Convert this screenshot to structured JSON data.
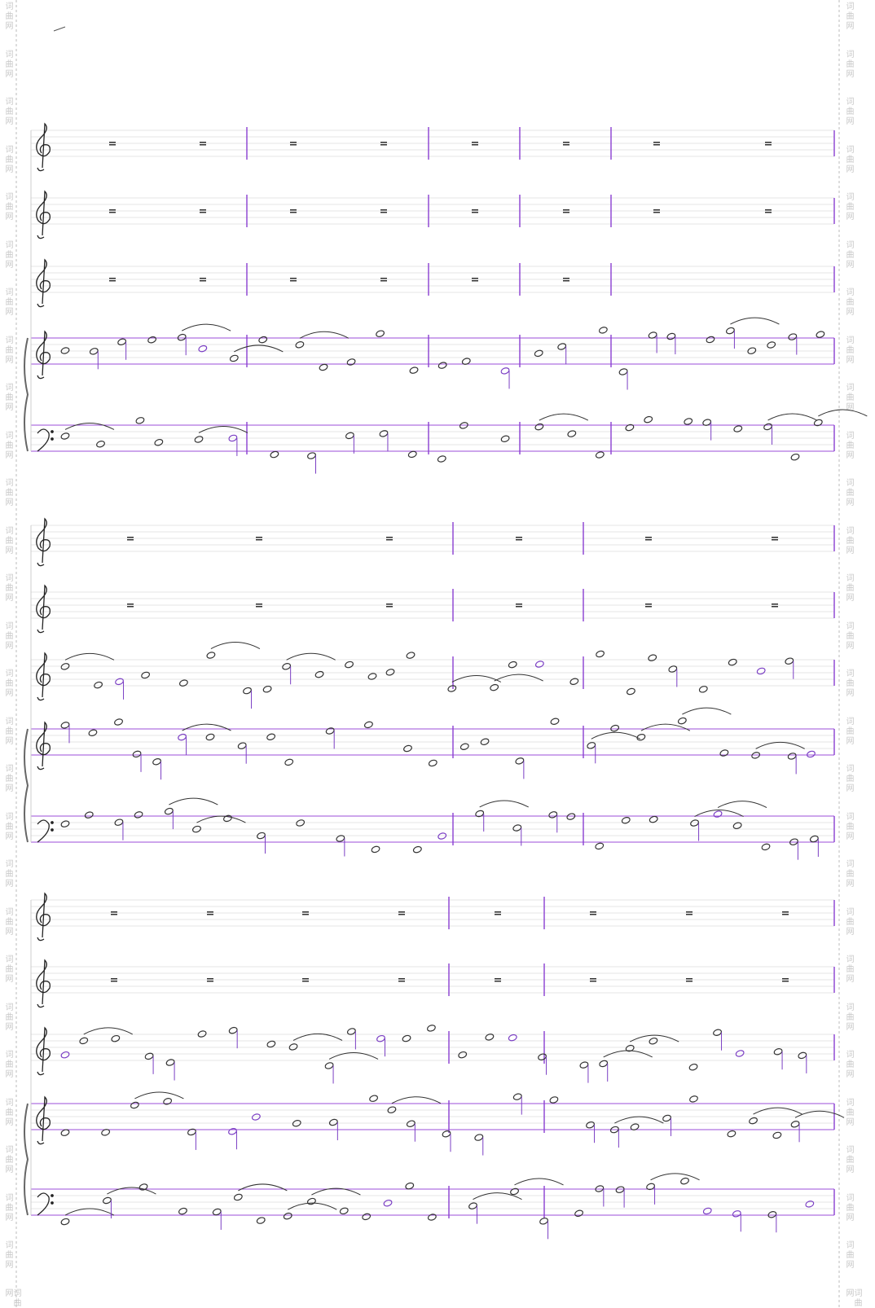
{
  "watermark": "词曲网"
}
